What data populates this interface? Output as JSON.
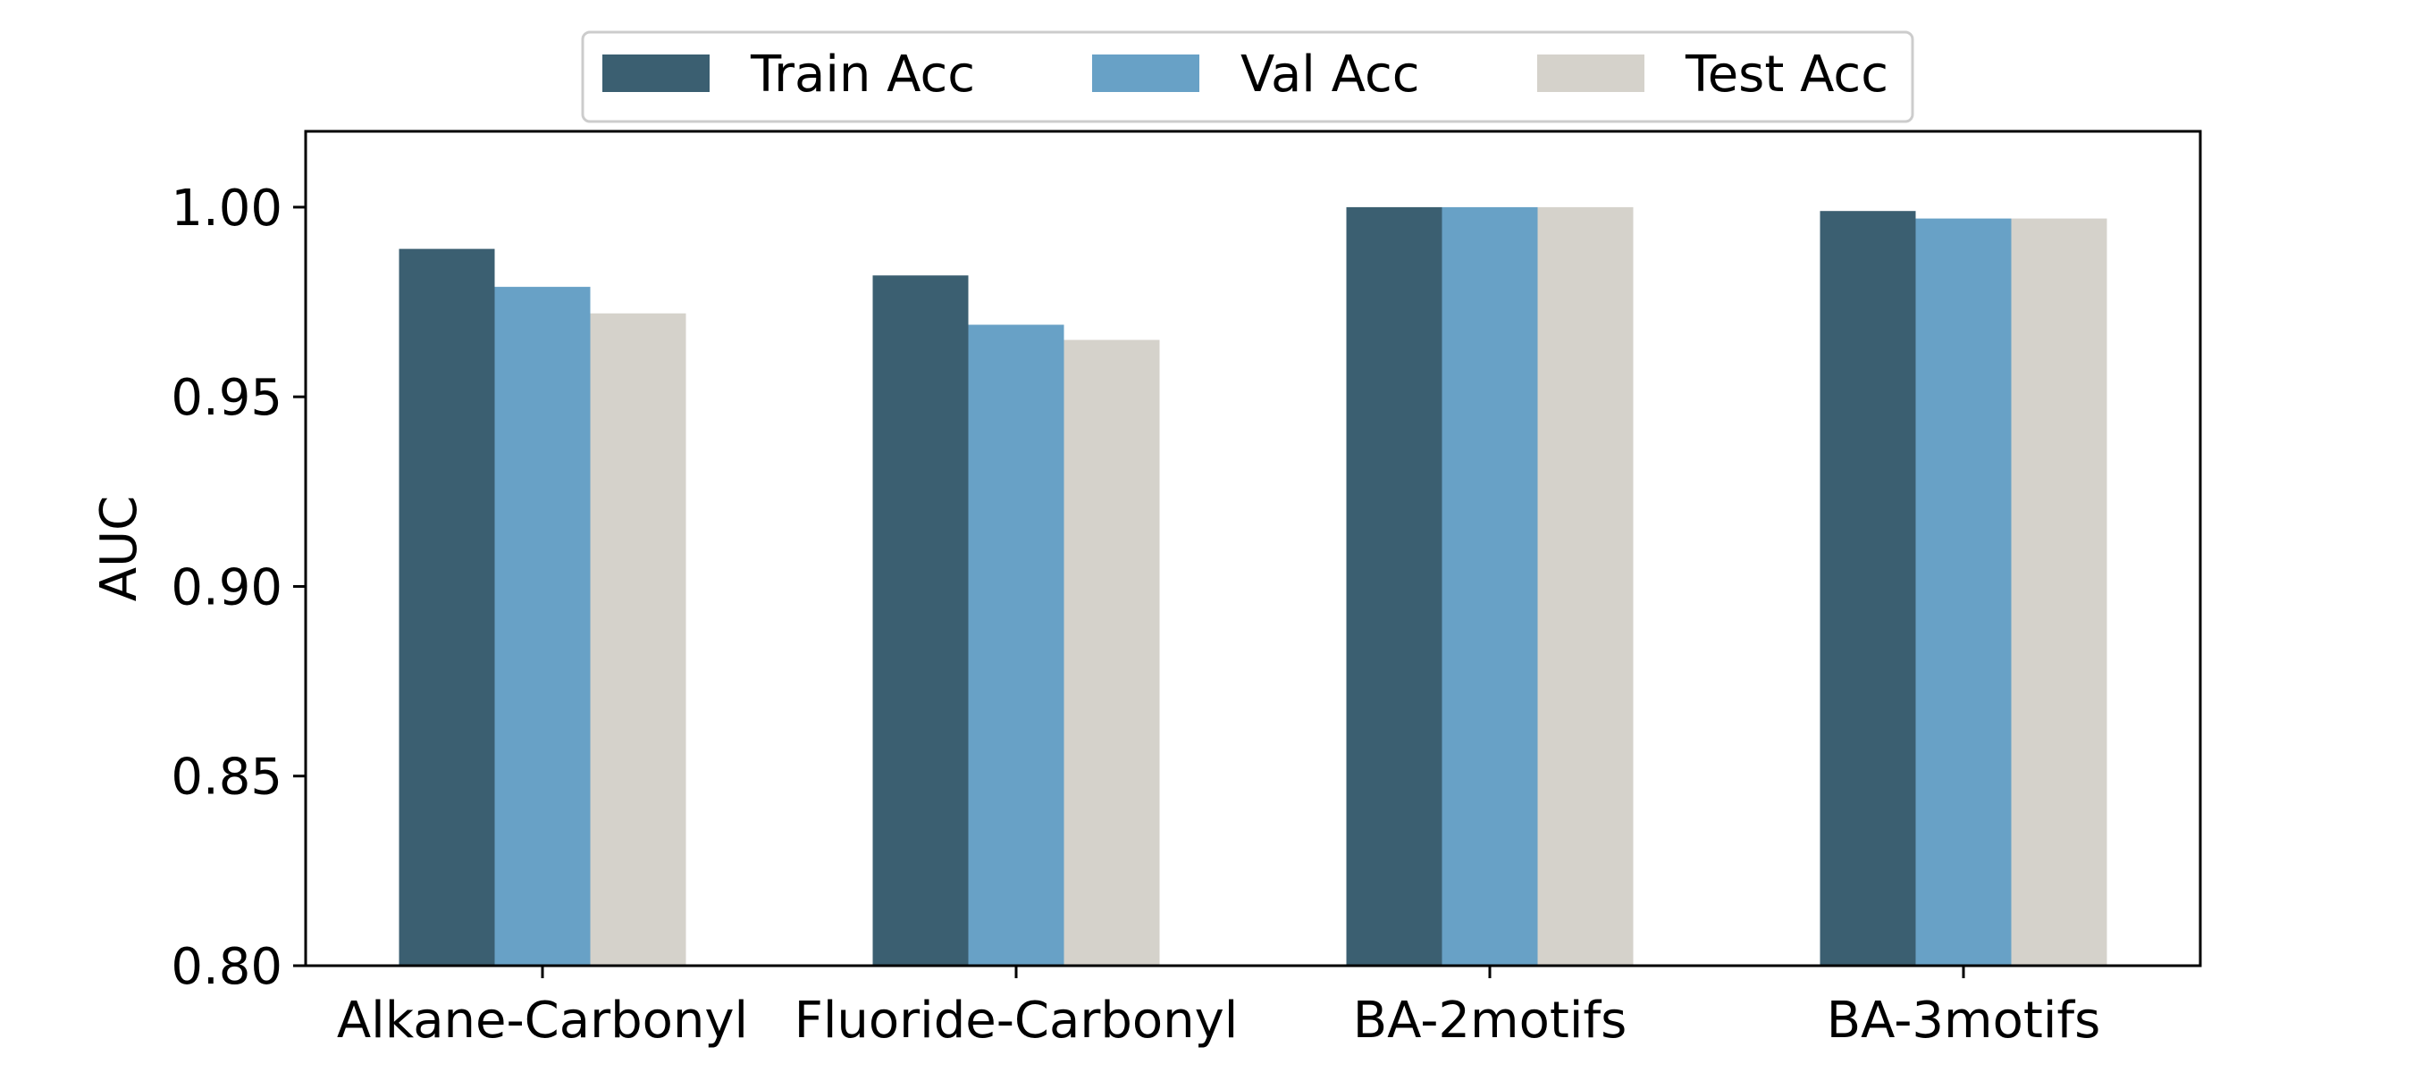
{
  "chart_data": {
    "type": "bar",
    "categories": [
      "Alkane-Carbonyl",
      "Fluoride-Carbonyl",
      "BA-2motifs",
      "BA-3motifs"
    ],
    "series": [
      {
        "name": "Train Acc",
        "values": [
          0.989,
          0.982,
          1.0,
          0.999
        ],
        "color": "#3b5f71"
      },
      {
        "name": "Val Acc",
        "values": [
          0.979,
          0.969,
          1.0,
          0.997
        ],
        "color": "#68a1c6"
      },
      {
        "name": "Test Acc",
        "values": [
          0.972,
          0.965,
          1.0,
          0.997
        ],
        "color": "#d5d2cb"
      }
    ],
    "xlabel": "",
    "ylabel": "AUC",
    "ylim": [
      0.8,
      1.02
    ],
    "yticks": [
      "0.80",
      "0.85",
      "0.90",
      "0.95",
      "1.00"
    ],
    "grid": false,
    "legend_position": "top-center"
  }
}
